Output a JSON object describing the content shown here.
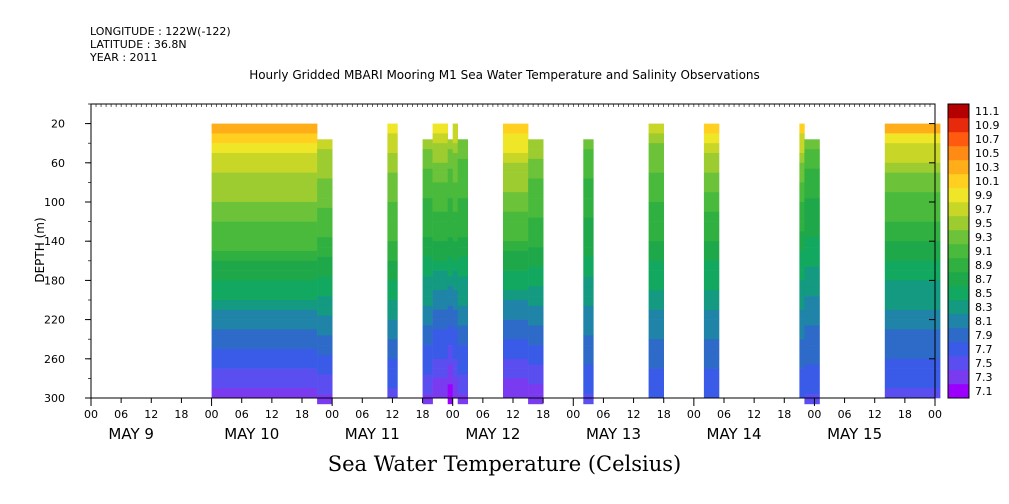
{
  "header": {
    "longitude": "LONGITUDE : 122W(-122)",
    "latitude": "LATITUDE : 36.8N",
    "year": "YEAR : 2011"
  },
  "chart_data": {
    "type": "heatmap",
    "title": "Hourly Gridded MBARI Mooring M1 Sea Water Temperature and Salinity Observations",
    "colorbar_title": "Sea Water Temperature (Celsius)",
    "ylabel": "DEPTH (m)",
    "y_axis": {
      "range": [
        300,
        0
      ],
      "ticks": [
        20,
        60,
        100,
        140,
        180,
        220,
        260,
        300
      ],
      "inverted": true
    },
    "x_axis": {
      "hour_ticks": [
        "00",
        "06",
        "12",
        "18",
        "00",
        "06",
        "12",
        "18",
        "00",
        "06",
        "12",
        "18",
        "00",
        "06",
        "12",
        "18",
        "00",
        "06",
        "12",
        "18",
        "00",
        "06",
        "12",
        "18",
        "00",
        "06",
        "12",
        "18",
        "00"
      ],
      "day_labels": [
        "MAY  9",
        "MAY 10",
        "MAY 11",
        "MAY 12",
        "MAY 13",
        "MAY 14",
        "MAY 15"
      ],
      "range_hours": [
        0,
        168
      ]
    },
    "colorbar": {
      "levels": [
        "11.1",
        "10.9",
        "10.7",
        "10.5",
        "10.3",
        "10.1",
        "9.9",
        "9.7",
        "9.5",
        "9.3",
        "9.1",
        "8.9",
        "8.7",
        "8.5",
        "8.3",
        "8.1",
        "7.9",
        "7.7",
        "7.5",
        "7.3",
        "7.1"
      ],
      "min": 7.0,
      "max": 11.2,
      "colors": [
        "#9b00ff",
        "#7a3af0",
        "#5a4ef0",
        "#3a5ae8",
        "#2e6ac8",
        "#1f84a8",
        "#139a80",
        "#12a860",
        "#1ea84a",
        "#30b040",
        "#4aba3c",
        "#6cc238",
        "#9ccc30",
        "#c8d628",
        "#f0e628",
        "#ffd020",
        "#ffae1a",
        "#ff8a14",
        "#ff5a10",
        "#e82a0c",
        "#b40000"
      ]
    },
    "segments": [
      {
        "t0": 24.0,
        "t1": 45.0,
        "top": 20,
        "surface": 10.5,
        "mid": 9.1,
        "deep": 7.3
      },
      {
        "t0": 45.0,
        "t1": 48.0,
        "top": 36,
        "surface": 9.9,
        "mid": 9.0,
        "deep": 7.4
      },
      {
        "t0": 59.0,
        "t1": 61.0,
        "top": 20,
        "surface": 10.1,
        "mid": 9.0,
        "deep": 7.5
      },
      {
        "t0": 66.0,
        "t1": 68.0,
        "top": 36,
        "surface": 9.6,
        "mid": 8.8,
        "deep": 7.4
      },
      {
        "t0": 68.0,
        "t1": 71.0,
        "top": 20,
        "surface": 10.1,
        "mid": 8.8,
        "deep": 7.2
      },
      {
        "t0": 71.0,
        "t1": 72.0,
        "top": 36,
        "surface": 9.6,
        "mid": 8.8,
        "deep": 7.1
      },
      {
        "t0": 72.0,
        "t1": 73.0,
        "top": 20,
        "surface": 10.0,
        "mid": 8.8,
        "deep": 7.2
      },
      {
        "t0": 73.0,
        "t1": 75.0,
        "top": 36,
        "surface": 9.5,
        "mid": 8.8,
        "deep": 7.4
      },
      {
        "t0": 82.0,
        "t1": 87.0,
        "top": 20,
        "surface": 10.4,
        "mid": 9.0,
        "deep": 7.2
      },
      {
        "t0": 87.0,
        "t1": 90.0,
        "top": 36,
        "surface": 9.7,
        "mid": 8.9,
        "deep": 7.3
      },
      {
        "t0": 98.0,
        "t1": 100.0,
        "top": 36,
        "surface": 9.4,
        "mid": 8.7,
        "deep": 7.6
      },
      {
        "t0": 111.0,
        "t1": 114.0,
        "top": 20,
        "surface": 9.8,
        "mid": 8.8,
        "deep": 7.6
      },
      {
        "t0": 122.0,
        "t1": 125.0,
        "top": 20,
        "surface": 10.3,
        "mid": 8.8,
        "deep": 7.6
      },
      {
        "t0": 141.0,
        "t1": 142.0,
        "top": 20,
        "surface": 10.3,
        "mid": 8.7,
        "deep": 7.6
      },
      {
        "t0": 142.0,
        "t1": 145.0,
        "top": 36,
        "surface": 9.4,
        "mid": 8.6,
        "deep": 7.6
      },
      {
        "t0": 158.0,
        "t1": 169.0,
        "top": 20,
        "surface": 10.5,
        "mid": 8.8,
        "deep": 7.5
      }
    ]
  }
}
